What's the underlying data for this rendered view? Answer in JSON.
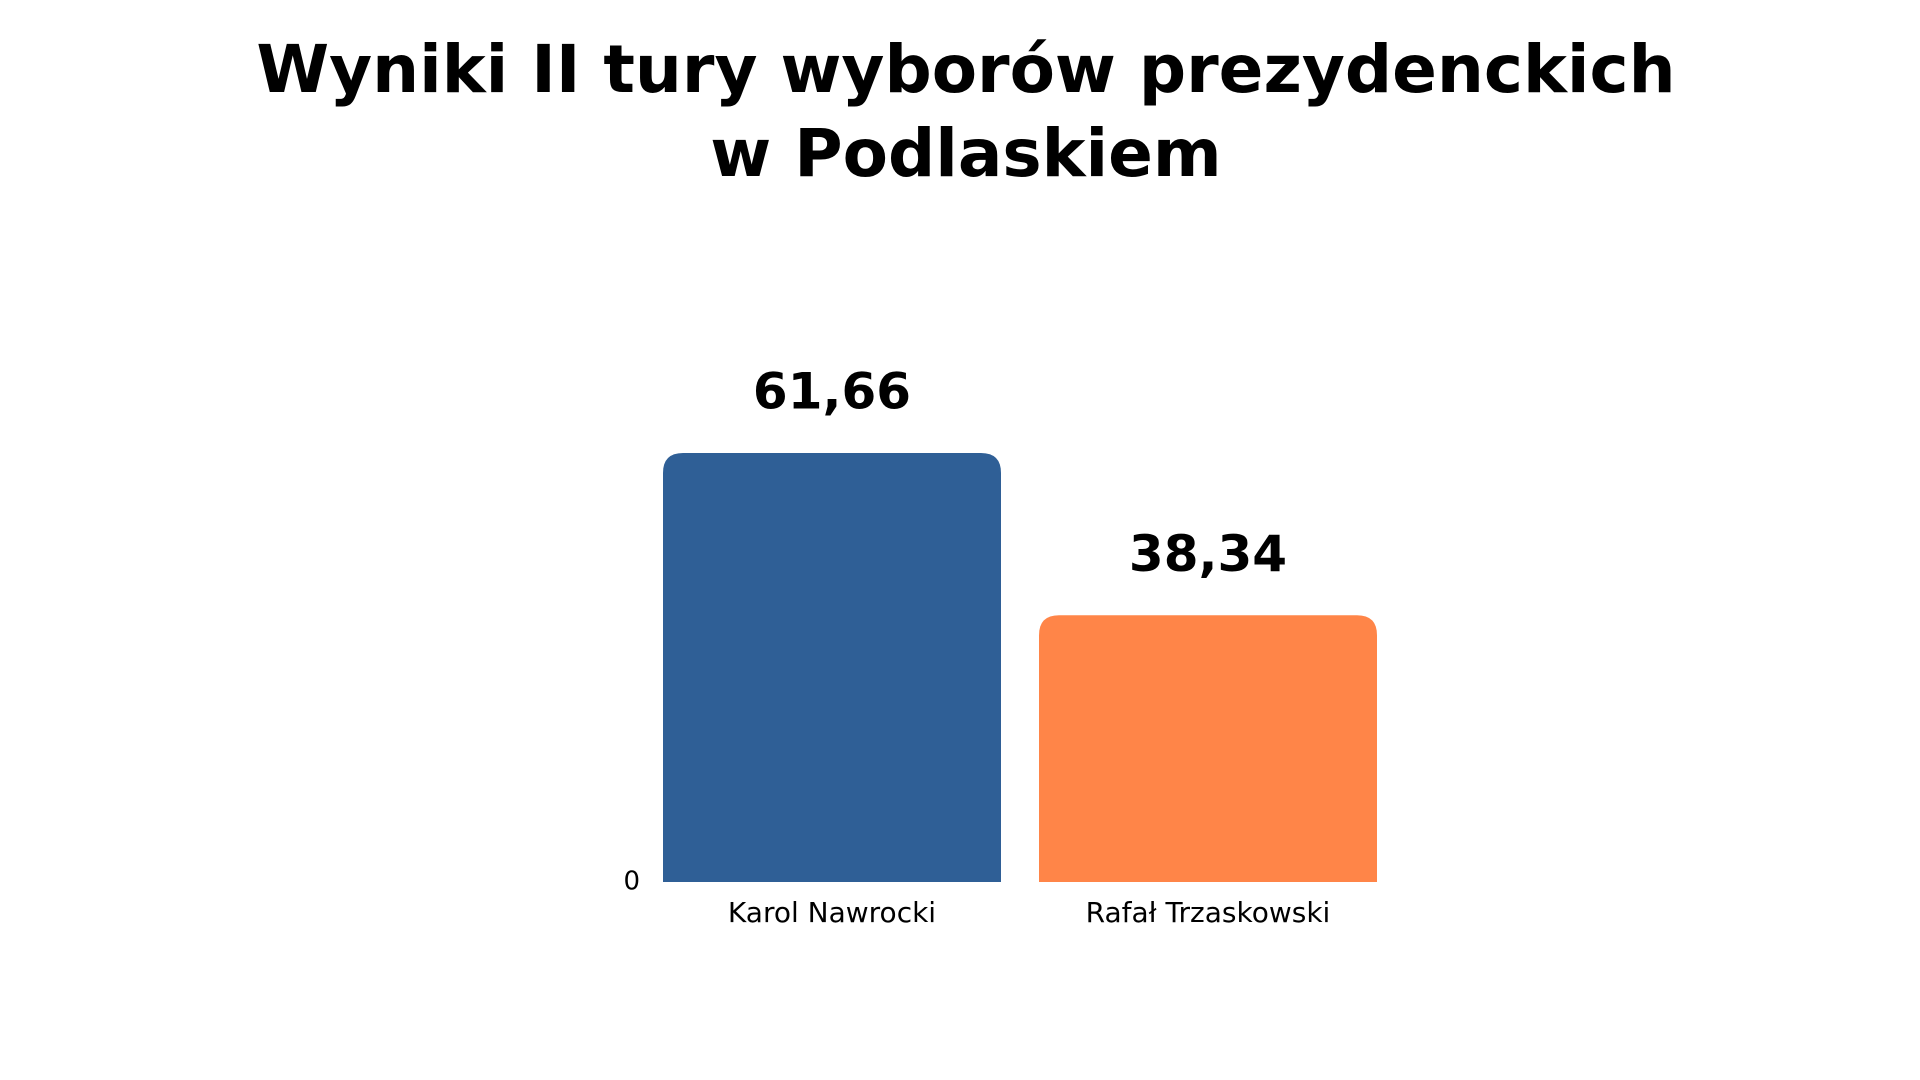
{
  "chart_data": {
    "type": "bar",
    "title": [
      "Wyniki II tury wyborów prezydenckich",
      "w Podlaskiem"
    ],
    "categories": [
      "Karol Nawrocki",
      "Rafał Trzaskowski"
    ],
    "values": [
      61.66,
      38.34
    ],
    "value_labels": [
      "61,66",
      "38,34"
    ],
    "colors": [
      "#2f5f96",
      "#ff8548"
    ],
    "ylim": [
      0,
      70
    ],
    "yticks": [
      0
    ],
    "grid": false
  }
}
